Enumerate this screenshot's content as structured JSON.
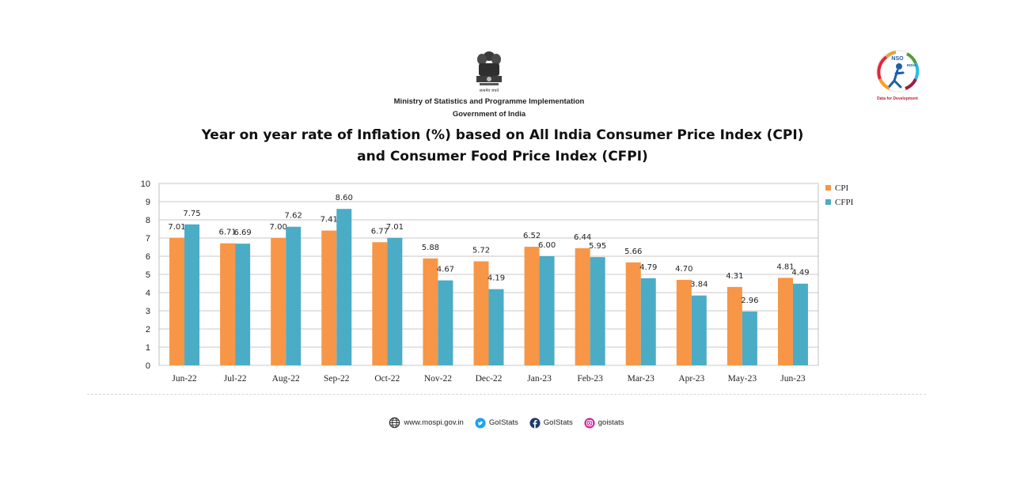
{
  "header": {
    "emblem_caption": "सत्यमेव जयते",
    "ministry": "Ministry of Statistics and Programme Implementation",
    "government": "Government of India",
    "logo_text": "NSO",
    "logo_country": "INDIA",
    "logo_tagline": "Data for Development"
  },
  "chart_data": {
    "type": "bar",
    "title_line1": "Year on year rate of Inflation (%) based on All India Consumer Price Index (CPI)",
    "title_line2": "and Consumer Food Price Index (CFPI)",
    "categories": [
      "Jun-22",
      "Jul-22",
      "Aug-22",
      "Sep-22",
      "Oct-22",
      "Nov-22",
      "Dec-22",
      "Jan-23",
      "Feb-23",
      "Mar-23",
      "Apr-23",
      "May-23",
      "Jun-23"
    ],
    "series": [
      {
        "name": "CPI",
        "color": "#F79646",
        "values": [
          7.01,
          6.71,
          7.0,
          7.41,
          6.77,
          5.88,
          5.72,
          6.52,
          6.44,
          5.66,
          4.7,
          4.31,
          4.81
        ]
      },
      {
        "name": "CFPI",
        "color": "#4BACC6",
        "values": [
          7.75,
          6.69,
          7.62,
          8.6,
          7.01,
          4.67,
          4.19,
          6.0,
          5.95,
          4.79,
          3.84,
          2.96,
          4.49
        ]
      }
    ],
    "ylim": [
      0,
      10
    ],
    "yticks": [
      0,
      1,
      2,
      3,
      4,
      5,
      6,
      7,
      8,
      9,
      10
    ],
    "grid": true,
    "legend": "top-right",
    "xlabel": "",
    "ylabel": ""
  },
  "footer": {
    "website": "www.mospi.gov.in",
    "twitter": "GoIStats",
    "facebook": "GoIStats",
    "instagram": "goistats"
  },
  "colors": {
    "cpi": "#F79646",
    "cfpi": "#4BACC6",
    "twitter": "#1DA1F2",
    "facebook": "#1B3A6B",
    "instagram": "#D6249F"
  }
}
